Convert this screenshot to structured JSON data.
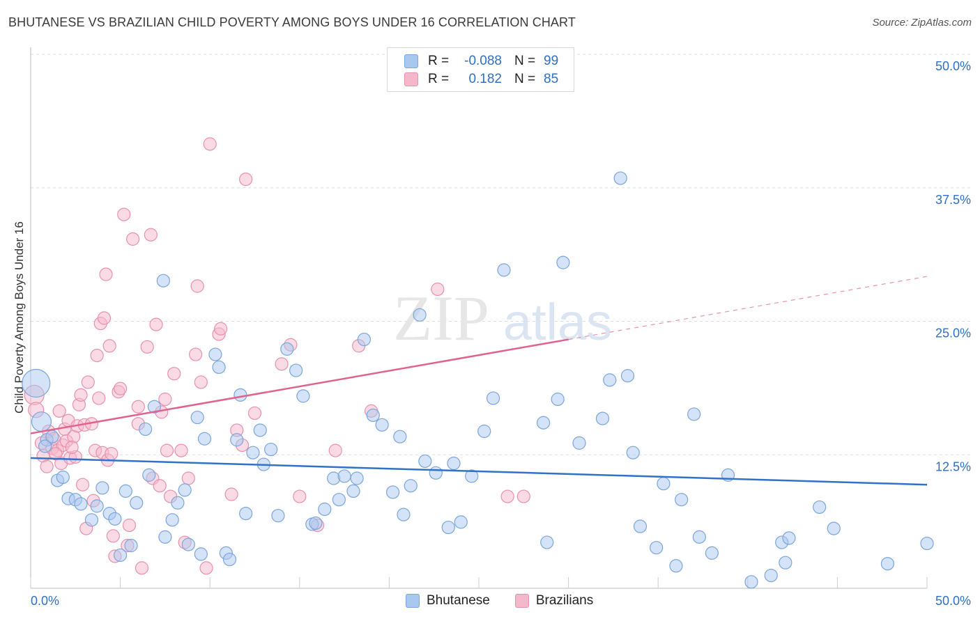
{
  "title": "BHUTANESE VS BRAZILIAN CHILD POVERTY AMONG BOYS UNDER 16 CORRELATION CHART",
  "source": "Source: ZipAtlas.com",
  "watermark": {
    "zip": "ZIP",
    "atlas": "atlas"
  },
  "legend": {
    "rows": [
      {
        "r_label": "R =",
        "r_value": "-0.088",
        "n_label": "N =",
        "n_value": "99"
      },
      {
        "r_label": "R =",
        "r_value": "0.182",
        "n_label": "N =",
        "n_value": "85"
      }
    ]
  },
  "bottom_legend": [
    "Bhutanese",
    "Brazilians"
  ],
  "colors": {
    "blue_fill": "#a9c8ef",
    "blue_stroke": "#7aa5dc",
    "blue_line": "#2f72c8",
    "pink_fill": "#f5b8cb",
    "pink_stroke": "#e890ab",
    "pink_line": "#e0628f",
    "tick_label": "#2f6fc4",
    "grid": "#dddddd"
  },
  "chart_data": {
    "type": "scatter",
    "title": "BHUTANESE VS BRAZILIAN CHILD POVERTY AMONG BOYS UNDER 16 CORRELATION CHART",
    "xlabel": "",
    "ylabel": "Child Poverty Among Boys Under 16",
    "xlim": [
      0,
      50
    ],
    "ylim": [
      0,
      50
    ],
    "x_tick_labels": [
      "0.0%",
      "50.0%"
    ],
    "y_ticks": [
      12.5,
      25.0,
      37.5,
      50.0
    ],
    "y_tick_labels": [
      "12.5%",
      "25.0%",
      "37.5%",
      "50.0%"
    ],
    "grid": "horizontal dashed",
    "legend_position": "top-center",
    "series": [
      {
        "name": "Bhutanese",
        "color": "#a9c8ef",
        "r": -0.088,
        "n": 99,
        "trend": {
          "x": [
            0,
            50
          ],
          "y": [
            12.2,
            9.7
          ],
          "dashed_beyond": null
        },
        "points": [
          [
            0.3,
            19.2,
            20
          ],
          [
            0.6,
            15.6,
            14
          ],
          [
            0.9,
            13.9,
            9
          ],
          [
            1.2,
            14.2,
            9
          ],
          [
            0.8,
            13.3,
            9
          ],
          [
            1.5,
            10.1,
            9
          ],
          [
            1.8,
            10.4,
            9
          ],
          [
            2.1,
            8.4,
            9
          ],
          [
            2.5,
            8.3,
            9
          ],
          [
            2.8,
            7.9,
            9
          ],
          [
            3.4,
            6.4,
            9
          ],
          [
            3.7,
            7.7,
            9
          ],
          [
            4.0,
            9.4,
            9
          ],
          [
            4.4,
            7.0,
            9
          ],
          [
            4.7,
            6.5,
            9
          ],
          [
            5.0,
            3.1,
            9
          ],
          [
            5.3,
            9.1,
            9
          ],
          [
            5.6,
            4.0,
            9
          ],
          [
            5.9,
            8.0,
            9
          ],
          [
            6.4,
            14.9,
            9
          ],
          [
            6.6,
            10.6,
            9
          ],
          [
            6.9,
            17.0,
            9
          ],
          [
            7.4,
            28.8,
            9
          ],
          [
            7.5,
            4.8,
            9
          ],
          [
            7.9,
            6.4,
            9
          ],
          [
            8.2,
            8.0,
            9
          ],
          [
            8.6,
            9.2,
            9
          ],
          [
            8.8,
            4.1,
            9
          ],
          [
            9.3,
            16.0,
            9
          ],
          [
            9.5,
            3.2,
            9
          ],
          [
            9.7,
            14.0,
            9
          ],
          [
            10.3,
            21.9,
            9
          ],
          [
            10.5,
            20.7,
            9
          ],
          [
            10.9,
            3.3,
            9
          ],
          [
            11.1,
            2.7,
            9
          ],
          [
            11.5,
            13.9,
            9
          ],
          [
            11.7,
            18.1,
            9
          ],
          [
            12.0,
            7.0,
            9
          ],
          [
            12.4,
            12.7,
            9
          ],
          [
            12.8,
            14.8,
            9
          ],
          [
            13.0,
            11.6,
            9
          ],
          [
            13.4,
            13.0,
            9
          ],
          [
            13.8,
            6.8,
            9
          ],
          [
            14.3,
            22.4,
            9
          ],
          [
            14.8,
            20.4,
            9
          ],
          [
            15.2,
            18.0,
            9
          ],
          [
            15.7,
            6.0,
            9
          ],
          [
            15.9,
            6.1,
            9
          ],
          [
            16.4,
            7.4,
            9
          ],
          [
            16.9,
            10.3,
            9
          ],
          [
            17.2,
            8.3,
            9
          ],
          [
            17.5,
            10.5,
            9
          ],
          [
            18.0,
            9.1,
            9
          ],
          [
            18.2,
            10.3,
            9
          ],
          [
            18.6,
            23.3,
            9
          ],
          [
            19.1,
            16.2,
            9
          ],
          [
            19.6,
            15.3,
            9
          ],
          [
            20.2,
            9.0,
            9
          ],
          [
            20.6,
            14.2,
            9
          ],
          [
            20.8,
            6.9,
            9
          ],
          [
            21.2,
            9.6,
            9
          ],
          [
            21.7,
            25.6,
            9
          ],
          [
            22.0,
            11.9,
            9
          ],
          [
            22.6,
            10.8,
            9
          ],
          [
            23.3,
            5.7,
            9
          ],
          [
            23.6,
            11.7,
            9
          ],
          [
            24.0,
            6.2,
            9
          ],
          [
            24.6,
            10.5,
            9
          ],
          [
            25.3,
            14.7,
            9
          ],
          [
            25.8,
            17.8,
            9
          ],
          [
            26.4,
            29.8,
            9
          ],
          [
            28.6,
            15.5,
            9
          ],
          [
            28.8,
            4.3,
            9
          ],
          [
            29.4,
            17.7,
            9
          ],
          [
            29.7,
            30.5,
            9
          ],
          [
            30.6,
            13.6,
            9
          ],
          [
            31.9,
            15.9,
            9
          ],
          [
            32.3,
            19.5,
            9
          ],
          [
            32.9,
            38.4,
            9
          ],
          [
            33.3,
            19.9,
            9
          ],
          [
            33.6,
            12.7,
            9
          ],
          [
            34.0,
            5.8,
            9
          ],
          [
            34.9,
            3.8,
            9
          ],
          [
            35.3,
            9.8,
            9
          ],
          [
            36.0,
            2.1,
            9
          ],
          [
            36.3,
            8.3,
            9
          ],
          [
            37.0,
            16.3,
            9
          ],
          [
            37.3,
            4.8,
            9
          ],
          [
            38.0,
            3.3,
            9
          ],
          [
            38.9,
            10.6,
            9
          ],
          [
            40.2,
            0.6,
            9
          ],
          [
            41.3,
            1.2,
            9
          ],
          [
            41.9,
            4.3,
            9
          ],
          [
            42.1,
            2.4,
            9
          ],
          [
            42.3,
            4.7,
            9
          ],
          [
            44.0,
            7.6,
            9
          ],
          [
            44.8,
            5.6,
            9
          ],
          [
            47.8,
            2.3,
            9
          ],
          [
            50.0,
            4.2,
            9
          ]
        ]
      },
      {
        "name": "Brazilians",
        "color": "#f5b8cb",
        "r": 0.182,
        "n": 85,
        "trend": {
          "x": [
            0,
            30
          ],
          "y": [
            14.5,
            23.3
          ],
          "dashed_to": [
            50,
            29.2
          ]
        },
        "points": [
          [
            0.2,
            18.1,
            14
          ],
          [
            0.3,
            16.7,
            11
          ],
          [
            0.6,
            13.6,
            9
          ],
          [
            0.7,
            12.4,
            9
          ],
          [
            0.9,
            11.4,
            9
          ],
          [
            1.0,
            14.7,
            9
          ],
          [
            1.2,
            13.1,
            9
          ],
          [
            1.3,
            14.0,
            9
          ],
          [
            1.5,
            12.9,
            9
          ],
          [
            1.6,
            16.6,
            9
          ],
          [
            1.7,
            11.7,
            9
          ],
          [
            1.8,
            13.4,
            9
          ],
          [
            1.9,
            14.9,
            9
          ],
          [
            2.0,
            13.8,
            9
          ],
          [
            2.1,
            15.7,
            9
          ],
          [
            2.2,
            12.2,
            9
          ],
          [
            2.4,
            14.2,
            9
          ],
          [
            2.5,
            12.3,
            9
          ],
          [
            2.6,
            15.2,
            9
          ],
          [
            2.7,
            17.2,
            9
          ],
          [
            2.8,
            18.1,
            9
          ],
          [
            2.9,
            9.7,
            9
          ],
          [
            3.0,
            15.3,
            9
          ],
          [
            3.1,
            5.6,
            9
          ],
          [
            3.2,
            19.3,
            9
          ],
          [
            3.4,
            15.4,
            9
          ],
          [
            3.5,
            8.2,
            9
          ],
          [
            3.6,
            12.9,
            9
          ],
          [
            3.7,
            21.8,
            9
          ],
          [
            3.8,
            17.8,
            9
          ],
          [
            3.9,
            24.8,
            9
          ],
          [
            4.0,
            12.7,
            9
          ],
          [
            4.1,
            25.3,
            9
          ],
          [
            4.2,
            29.4,
            9
          ],
          [
            4.3,
            12.0,
            9
          ],
          [
            4.4,
            22.7,
            9
          ],
          [
            4.5,
            12.6,
            9
          ],
          [
            4.6,
            4.9,
            9
          ],
          [
            4.7,
            3.0,
            9
          ],
          [
            4.9,
            18.4,
            9
          ],
          [
            5.0,
            18.7,
            9
          ],
          [
            5.2,
            35.0,
            9
          ],
          [
            5.4,
            4.0,
            9
          ],
          [
            5.5,
            5.9,
            9
          ],
          [
            5.7,
            32.7,
            9
          ],
          [
            6.0,
            15.4,
            9
          ],
          [
            6.2,
            1.9,
            9
          ],
          [
            6.5,
            22.6,
            9
          ],
          [
            6.7,
            33.1,
            9
          ],
          [
            6.8,
            10.3,
            9
          ],
          [
            7.0,
            24.7,
            9
          ],
          [
            7.2,
            9.6,
            9
          ],
          [
            7.3,
            16.5,
            9
          ],
          [
            7.5,
            17.7,
            9
          ],
          [
            7.6,
            12.9,
            9
          ],
          [
            7.8,
            8.6,
            9
          ],
          [
            8.0,
            20.1,
            9
          ],
          [
            8.4,
            12.9,
            9
          ],
          [
            8.6,
            4.3,
            9
          ],
          [
            8.8,
            10.3,
            9
          ],
          [
            9.2,
            21.9,
            9
          ],
          [
            9.3,
            28.3,
            9
          ],
          [
            9.5,
            19.3,
            9
          ],
          [
            9.8,
            1.9,
            9
          ],
          [
            10.0,
            41.6,
            9
          ],
          [
            10.5,
            23.8,
            9
          ],
          [
            10.6,
            24.3,
            9
          ],
          [
            11.2,
            8.8,
            9
          ],
          [
            11.5,
            14.8,
            9
          ],
          [
            11.8,
            13.4,
            9
          ],
          [
            12.0,
            38.3,
            9
          ],
          [
            12.5,
            16.4,
            9
          ],
          [
            14.0,
            21.0,
            9
          ],
          [
            14.5,
            22.8,
            9
          ],
          [
            15.0,
            8.6,
            9
          ],
          [
            16.0,
            5.9,
            9
          ],
          [
            17.0,
            12.9,
            9
          ],
          [
            18.3,
            22.7,
            9
          ],
          [
            19.0,
            16.6,
            9
          ],
          [
            22.7,
            28.0,
            9
          ],
          [
            26.6,
            8.6,
            9
          ],
          [
            27.5,
            8.6,
            9
          ],
          [
            6.0,
            17.0,
            9
          ],
          [
            2.3,
            13.2,
            9
          ],
          [
            1.4,
            12.6,
            9
          ]
        ]
      }
    ]
  }
}
